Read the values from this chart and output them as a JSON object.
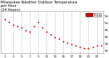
{
  "title": "Milwaukee Weather Outdoor Temperature",
  "title2": "per Hour",
  "title3": "(24 Hours)",
  "hours": [
    1,
    2,
    3,
    4,
    5,
    6,
    7,
    8,
    9,
    10,
    11,
    12,
    13,
    14,
    15,
    16,
    17,
    18,
    19,
    20,
    21,
    22,
    23,
    24
  ],
  "temps": [
    52,
    50,
    48,
    47,
    46,
    44,
    43,
    47,
    50,
    46,
    43,
    41,
    39,
    38,
    36,
    35,
    34,
    33,
    32,
    31,
    31,
    32,
    33,
    33
  ],
  "dot_color": "#dd0000",
  "bg_color": "#ffffff",
  "grid_color": "#888888",
  "legend_fill": "#dd0000",
  "legend_text_color": "#ffffff",
  "ylabel_color": "#000000",
  "xlabel_color": "#000000",
  "ylim": [
    28,
    58
  ],
  "ytick_values": [
    30,
    35,
    40,
    45,
    50,
    55
  ],
  "ytick_labels": [
    "30",
    "35",
    "40",
    "45",
    "50",
    "55"
  ],
  "xtick_positions": [
    1,
    3,
    5,
    7,
    9,
    11,
    13,
    15,
    17,
    19,
    21,
    23
  ],
  "xtick_labels": [
    "1",
    "3",
    "5",
    "7",
    "9",
    "11",
    "13",
    "15",
    "17",
    "19",
    "21",
    "23"
  ],
  "grid_hours": [
    3,
    5,
    7,
    9,
    11,
    13,
    15,
    17,
    19,
    21,
    23
  ],
  "title_fontsize": 3.8,
  "tick_fontsize": 3.2,
  "dot_size": 2.5,
  "legend_label": "Temp"
}
